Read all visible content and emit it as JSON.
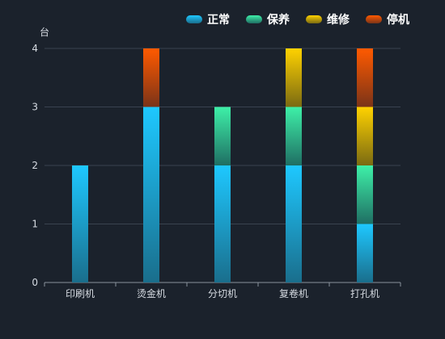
{
  "chart_data": {
    "type": "bar",
    "stacked": true,
    "categories": [
      "印刷机",
      "烫金机",
      "分切机",
      "复卷机",
      "打孔机"
    ],
    "series": [
      {
        "name": "正常",
        "values": [
          2,
          3,
          2,
          2,
          1
        ],
        "color_top": "#1ec8ff",
        "color_bottom": "#1a6e8c"
      },
      {
        "name": "保养",
        "values": [
          0,
          0,
          1,
          1,
          1
        ],
        "color_top": "#3ef0a8",
        "color_bottom": "#1f6e63"
      },
      {
        "name": "维修",
        "values": [
          0,
          0,
          0,
          1,
          1
        ],
        "color_top": "#ffd200",
        "color_bottom": "#7a6a12"
      },
      {
        "name": "停机",
        "values": [
          0,
          1,
          0,
          0,
          1
        ],
        "color_top": "#ff5a00",
        "color_bottom": "#7a3318"
      }
    ],
    "ylabel": "台",
    "ylim": [
      0,
      4
    ],
    "yticks": [
      0,
      1,
      2,
      3,
      4
    ],
    "grid": true,
    "legend_position": "top-right"
  }
}
